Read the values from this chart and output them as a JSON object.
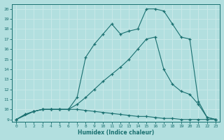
{
  "xlabel": "Humidex (Indice chaleur)",
  "xlim": [
    -0.5,
    23.5
  ],
  "ylim": [
    8.8,
    20.5
  ],
  "xticks": [
    0,
    1,
    2,
    3,
    4,
    5,
    6,
    7,
    8,
    9,
    10,
    11,
    12,
    13,
    14,
    15,
    16,
    17,
    18,
    19,
    20,
    21,
    22,
    23
  ],
  "yticks": [
    9,
    10,
    11,
    12,
    13,
    14,
    15,
    16,
    17,
    18,
    19,
    20
  ],
  "bg_color": "#b2dfdf",
  "line_color": "#1a7070",
  "grid_color": "#c8e8e8",
  "line1_x": [
    0,
    1,
    2,
    3,
    4,
    5,
    6,
    7,
    8,
    9,
    10,
    11,
    12,
    13,
    14,
    15,
    16,
    17,
    18,
    19,
    20,
    21,
    22,
    23
  ],
  "line1_y": [
    9,
    9.5,
    9.8,
    10,
    10,
    10,
    10,
    10,
    9.9,
    9.8,
    9.7,
    9.6,
    9.5,
    9.4,
    9.3,
    9.3,
    9.2,
    9.1,
    9.1,
    9.0,
    9.0,
    9.0,
    9.0,
    9.0
  ],
  "line2_x": [
    0,
    1,
    2,
    3,
    4,
    5,
    6,
    7,
    8,
    9,
    10,
    11,
    12,
    13,
    14,
    15,
    16,
    17,
    18,
    19,
    20,
    21,
    22,
    23
  ],
  "line2_y": [
    9,
    9.5,
    9.8,
    10,
    10,
    10,
    10,
    10.5,
    11.2,
    12.0,
    12.8,
    13.5,
    14.2,
    15.0,
    16.0,
    17.0,
    17.2,
    14.0,
    12.5,
    11.8,
    11.5,
    10.5,
    9.2,
    9.0
  ],
  "line3_x": [
    0,
    2,
    3,
    4,
    5,
    6,
    7,
    8,
    9,
    10,
    11,
    12,
    13,
    14,
    15,
    16,
    17,
    18,
    19,
    20,
    21,
    22,
    23
  ],
  "line3_y": [
    9,
    9.8,
    10,
    10,
    10,
    10,
    11.2,
    15.2,
    16.5,
    17.5,
    18.5,
    17.5,
    17.8,
    18.0,
    20.0,
    20.0,
    19.8,
    18.5,
    17.2,
    17.0,
    10.8,
    9.2,
    9.0
  ]
}
